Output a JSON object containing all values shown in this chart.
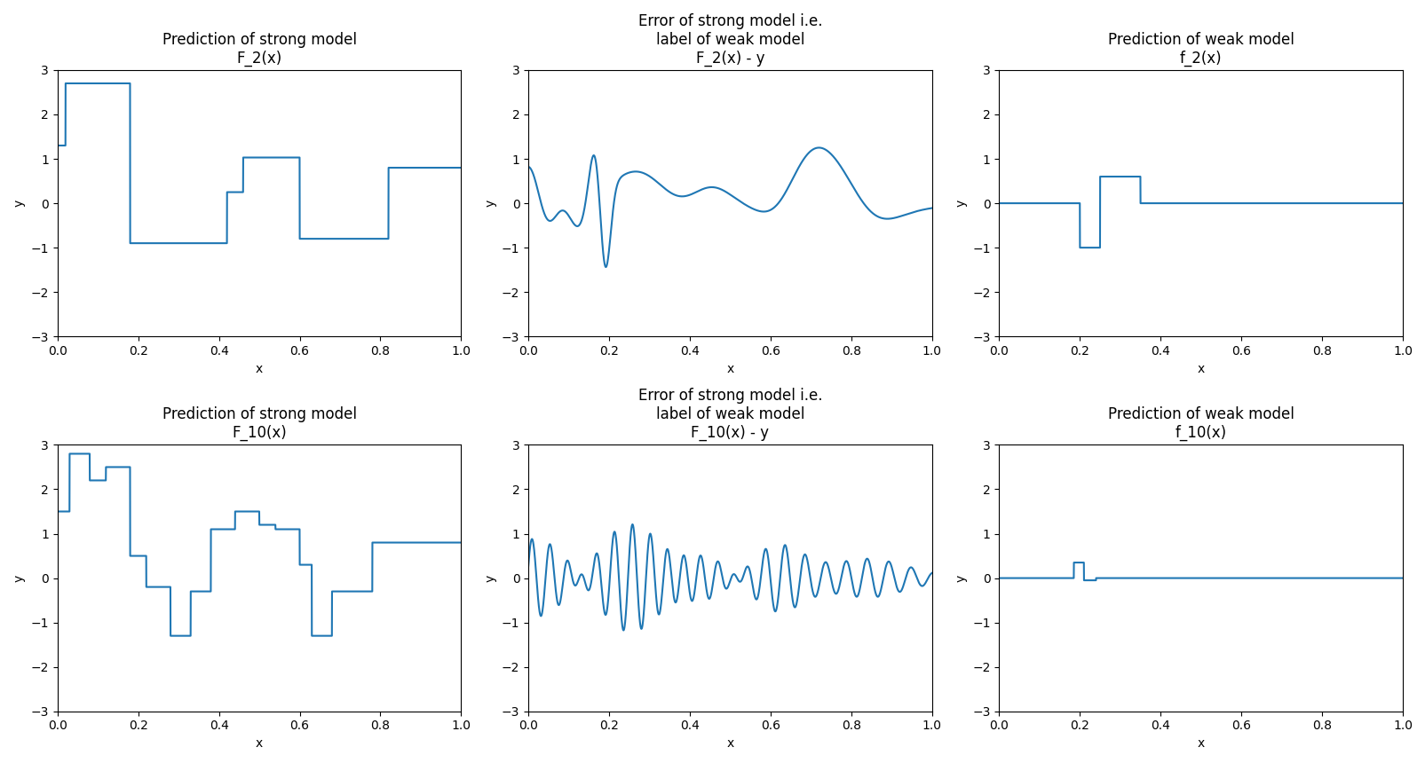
{
  "line_color": "#1f77b4",
  "ylim": [
    -3,
    3
  ],
  "xlim": [
    0,
    1
  ],
  "xlabel": "x",
  "ylabel": "y",
  "titles": {
    "strong_2": "Prediction of strong model\nF_2(x)",
    "error_2": "Error of strong model i.e.\nlabel of weak model\nF_2(x) - y",
    "weak_2": "Prediction of weak model\nf_2(x)",
    "strong_10": "Prediction of strong model\nF_10(x)",
    "error_10": "Error of strong model i.e.\nlabel of weak model\nF_10(x) - y",
    "weak_10": "Prediction of weak model\nf_10(x)"
  },
  "background_color": "#ffffff",
  "figsize": [
    16.06,
    8.6
  ],
  "dpi": 100
}
